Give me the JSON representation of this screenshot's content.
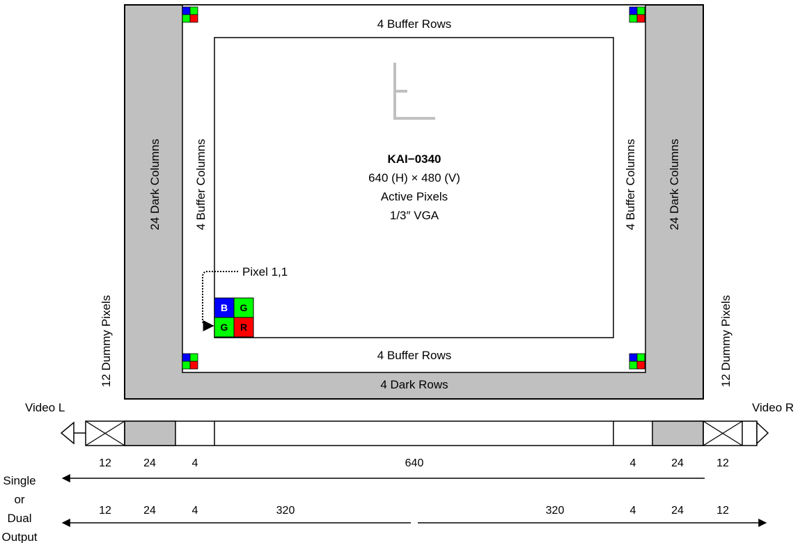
{
  "sensor": {
    "name": "KAI−0340",
    "resolution": "640 (H) × 480 (V)",
    "active_pixels": "Active Pixels",
    "format": "1/3″ VGA"
  },
  "regions": {
    "top_buffer_rows": "4 Buffer Rows",
    "bottom_buffer_rows": "4 Buffer Rows",
    "dark_rows": "4 Dark Rows",
    "left_dark_columns": "24 Dark Columns",
    "right_dark_columns": "24 Dark Columns",
    "left_buffer_columns": "4 Buffer Columns",
    "right_buffer_columns": "4 Buffer Columns",
    "left_dummy_pixels": "12 Dummy Pixels",
    "right_dummy_pixels": "12 Dummy Pixels"
  },
  "pixel_origin": {
    "label": "Pixel 1,1",
    "cells": [
      "B",
      "G",
      "G",
      "R"
    ]
  },
  "outputs": {
    "video_left": "Video L",
    "video_right": "Video R"
  },
  "single_output_counts": [
    "12",
    "24",
    "4",
    "640",
    "4",
    "24",
    "12"
  ],
  "dual_output_counts": [
    "12",
    "24",
    "4",
    "320",
    "320",
    "4",
    "24",
    "12"
  ],
  "mode_label": [
    "Single",
    "or",
    "Dual",
    "Output"
  ],
  "colors": {
    "dark_gray": "#c0c0c0",
    "blue": "#0000ff",
    "green": "#00ff00",
    "red": "#ff0000",
    "orientation_mark": "#c0c0c0"
  }
}
